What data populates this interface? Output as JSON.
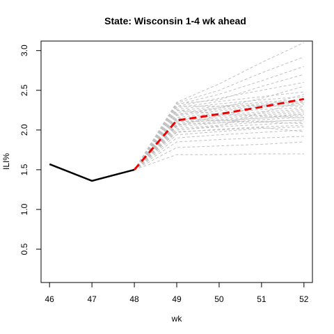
{
  "chart_data": {
    "type": "line",
    "title": "State: Wisconsin 1-4 wk ahead",
    "xlabel": "wk",
    "ylabel": "ILI%",
    "x_ticks": [
      "46",
      "47",
      "48",
      "49",
      "50",
      "51",
      "52"
    ],
    "y_ticks": [
      "0.5",
      "1.0",
      "1.5",
      "2.0",
      "2.5",
      "3.0"
    ],
    "xlim": [
      45.8,
      52.2
    ],
    "ylim": [
      0.08,
      3.12
    ],
    "grid": false,
    "colors": {
      "observed": "#000000",
      "mean_forecast": "#ee0000",
      "samples": "#c0c0c0"
    },
    "observed": {
      "x": [
        46,
        47,
        48
      ],
      "y": [
        1.57,
        1.36,
        1.5
      ]
    },
    "mean_forecast": {
      "x": [
        48,
        49,
        50,
        51,
        52
      ],
      "y": [
        1.5,
        2.12,
        2.2,
        2.29,
        2.39
      ]
    },
    "forecast_samples": {
      "x": [
        48,
        49,
        50,
        51,
        52
      ],
      "y": [
        [
          1.5,
          1.69,
          1.69,
          1.7,
          1.7
        ],
        [
          1.5,
          1.78,
          1.8,
          1.82,
          1.85
        ],
        [
          1.5,
          1.85,
          1.88,
          1.9,
          1.92
        ],
        [
          1.5,
          1.9,
          1.94,
          1.97,
          2.0
        ],
        [
          1.5,
          1.94,
          1.98,
          2.02,
          2.04
        ],
        [
          1.5,
          1.97,
          2.01,
          2.04,
          2.06
        ],
        [
          1.5,
          2.0,
          2.04,
          2.07,
          2.1
        ],
        [
          1.5,
          2.02,
          2.06,
          2.1,
          2.13
        ],
        [
          1.5,
          2.04,
          2.09,
          2.13,
          2.16
        ],
        [
          1.5,
          2.06,
          2.11,
          2.15,
          2.18
        ],
        [
          1.5,
          2.08,
          2.13,
          2.17,
          2.2
        ],
        [
          1.5,
          2.1,
          2.15,
          2.19,
          2.22
        ],
        [
          1.5,
          2.12,
          2.17,
          2.21,
          2.24
        ],
        [
          1.5,
          2.14,
          2.19,
          2.23,
          2.26
        ],
        [
          1.5,
          2.16,
          2.21,
          2.26,
          2.28
        ],
        [
          1.5,
          2.18,
          2.24,
          2.29,
          2.32
        ],
        [
          1.5,
          2.2,
          2.26,
          2.31,
          2.34
        ],
        [
          1.5,
          2.22,
          2.28,
          2.33,
          2.36
        ],
        [
          1.5,
          2.24,
          2.3,
          2.35,
          2.38
        ],
        [
          1.5,
          2.26,
          2.33,
          2.38,
          2.42
        ],
        [
          1.5,
          2.28,
          2.36,
          2.42,
          2.48
        ],
        [
          1.5,
          2.3,
          2.4,
          2.5,
          2.6
        ],
        [
          1.5,
          2.32,
          2.45,
          2.62,
          2.8
        ],
        [
          1.5,
          2.34,
          2.5,
          2.72,
          2.92
        ],
        [
          1.5,
          2.35,
          2.58,
          2.85,
          3.1
        ],
        [
          1.5,
          2.3,
          2.3,
          2.31,
          2.3
        ],
        [
          1.5,
          2.1,
          2.12,
          2.15,
          2.2
        ],
        [
          1.5,
          2.0,
          2.05,
          2.22,
          2.36
        ],
        [
          1.5,
          2.15,
          2.12,
          2.1,
          2.08
        ],
        [
          1.5,
          2.25,
          2.2,
          2.18,
          2.15
        ],
        [
          1.5,
          2.05,
          2.18,
          2.3,
          2.45
        ],
        [
          1.5,
          1.98,
          2.0,
          2.03,
          1.98
        ],
        [
          1.5,
          2.33,
          2.38,
          2.55,
          2.7
        ],
        [
          1.5,
          2.19,
          2.28,
          2.4,
          2.55
        ],
        [
          1.5,
          2.07,
          2.09,
          2.11,
          2.12
        ]
      ]
    }
  }
}
